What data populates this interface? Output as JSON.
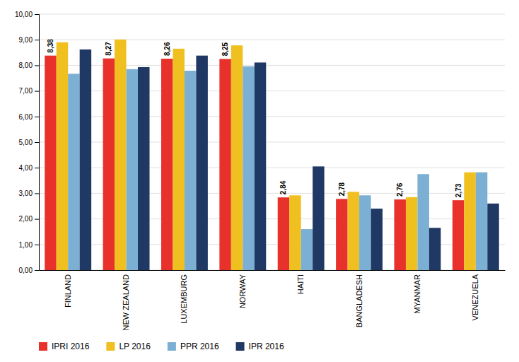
{
  "chart_data": {
    "type": "bar",
    "categories": [
      "FINLAND",
      "NEW ZEALAND",
      "LUXEMBURG",
      "NORWAY",
      "HAITI",
      "BANGLADESH",
      "MYANMAR",
      "VENEZUELA"
    ],
    "series": [
      {
        "name": "IPRI 2016",
        "color": "#E8312A",
        "values": [
          8.38,
          8.27,
          8.26,
          8.25,
          2.84,
          2.78,
          2.76,
          2.73
        ],
        "data_labels": true,
        "value_labels": [
          "8,38",
          "8,27",
          "8,26",
          "8,25",
          "2,84",
          "2,78",
          "2,76",
          "2,73"
        ]
      },
      {
        "name": "LP 2016",
        "color": "#F0C020",
        "values": [
          8.9,
          9.01,
          8.65,
          8.78,
          2.92,
          3.06,
          2.85,
          3.82
        ]
      },
      {
        "name": "PPR 2016",
        "color": "#7BAFD4",
        "values": [
          7.67,
          7.85,
          7.79,
          7.96,
          1.6,
          2.92,
          3.75,
          3.82
        ]
      },
      {
        "name": "IPR 2016",
        "color": "#1F3864",
        "values": [
          8.62,
          7.93,
          8.38,
          8.11,
          4.05,
          2.4,
          1.65,
          2.6
        ]
      }
    ],
    "ylim": [
      0,
      10
    ],
    "yticks": [
      {
        "value": 0.0,
        "label": "0,00"
      },
      {
        "value": 1.0,
        "label": "1,00"
      },
      {
        "value": 2.0,
        "label": "2,00"
      },
      {
        "value": 3.0,
        "label": "3,00"
      },
      {
        "value": 4.0,
        "label": "4,00"
      },
      {
        "value": 5.0,
        "label": "5,00"
      },
      {
        "value": 6.0,
        "label": "6,00"
      },
      {
        "value": 7.0,
        "label": "7,00"
      },
      {
        "value": 8.0,
        "label": "8,00"
      },
      {
        "value": 9.0,
        "label": "9,00"
      },
      {
        "value": 10.0,
        "label": "10,00"
      }
    ],
    "grid": true,
    "legend": "bottom"
  }
}
